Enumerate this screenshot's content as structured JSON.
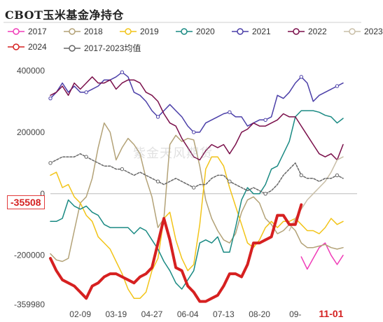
{
  "title": "CBOT玉米基金净持仓",
  "watermark": "紫金天风期货",
  "current_value_label": "-35508",
  "colors": {
    "2017": "#f03cb8",
    "2018": "#b3a277",
    "2019": "#f2c418",
    "2020": "#1a8a83",
    "2021": "#4b3fa8",
    "2022": "#7a0f4a",
    "2023": "#c9bfa8",
    "2024": "#d62020",
    "avg": "#666666"
  },
  "chart_data": {
    "type": "line",
    "title": "CBOT玉米基金净持仓",
    "y_tick_labels": [
      "400000",
      "200000",
      "0",
      "-200000",
      "-359980"
    ],
    "x_tick_labels": [
      "02-09",
      "03-19",
      "04-27",
      "06-04",
      "07-13",
      "08-20",
      "09-",
      "11-01"
    ],
    "ylim": [
      -359980,
      400000
    ],
    "x_points": 50,
    "series": [
      {
        "name": "2017",
        "key": "2017",
        "width": 1.5,
        "dash": "",
        "marker": false,
        "values": [
          null,
          null,
          null,
          null,
          null,
          null,
          null,
          null,
          null,
          null,
          null,
          null,
          null,
          null,
          null,
          null,
          null,
          null,
          null,
          null,
          null,
          null,
          null,
          null,
          null,
          null,
          null,
          null,
          null,
          null,
          null,
          null,
          null,
          null,
          null,
          null,
          null,
          null,
          null,
          null,
          null,
          null,
          -205000,
          -245000,
          -210000,
          -175000,
          -160000,
          -200000,
          -230000,
          -200000
        ]
      },
      {
        "name": "2018",
        "key": "2018",
        "width": 1.5,
        "dash": "",
        "marker": false,
        "values": [
          -195000,
          -215000,
          -220000,
          -210000,
          -120000,
          -30000,
          -10000,
          50000,
          150000,
          230000,
          200000,
          110000,
          150000,
          180000,
          160000,
          130000,
          50000,
          -10000,
          -110000,
          -80000,
          160000,
          190000,
          170000,
          180000,
          175000,
          90000,
          -20000,
          -80000,
          -120000,
          -150000,
          -160000,
          -130000,
          -60000,
          -20000,
          -10000,
          -30000,
          -80000,
          -100000,
          -130000,
          -120000,
          -100000,
          -120000,
          -160000,
          -175000,
          -175000,
          -170000,
          -165000,
          -175000,
          -180000,
          -175000
        ]
      },
      {
        "name": "2019",
        "key": "2019",
        "width": 1.5,
        "dash": "",
        "marker": false,
        "values": [
          60000,
          70000,
          20000,
          30000,
          -10000,
          -30000,
          -70000,
          -90000,
          -140000,
          -160000,
          -180000,
          -220000,
          -260000,
          -310000,
          -340000,
          -340000,
          -320000,
          -250000,
          -210000,
          -80000,
          -60000,
          -150000,
          -210000,
          -250000,
          -230000,
          -100000,
          80000,
          120000,
          120000,
          90000,
          20000,
          -40000,
          -100000,
          -160000,
          -175000,
          -150000,
          -110000,
          -90000,
          -110000,
          -90000,
          -90000,
          -80000,
          -100000,
          -120000,
          -120000,
          -130000,
          -110000,
          -80000,
          -100000,
          -90000
        ]
      },
      {
        "name": "2020",
        "key": "2020",
        "width": 1.5,
        "dash": "",
        "marker": false,
        "values": [
          -90000,
          -90000,
          -80000,
          -20000,
          -40000,
          -50000,
          -40000,
          -60000,
          -70000,
          -100000,
          -110000,
          -110000,
          -110000,
          -110000,
          -130000,
          -110000,
          -120000,
          -150000,
          -180000,
          -220000,
          -250000,
          -290000,
          -310000,
          -280000,
          -250000,
          -160000,
          -150000,
          -160000,
          -140000,
          -190000,
          -190000,
          -110000,
          -20000,
          20000,
          0,
          0,
          30000,
          80000,
          90000,
          130000,
          170000,
          250000,
          270000,
          270000,
          270000,
          265000,
          255000,
          250000,
          230000,
          245000
        ]
      },
      {
        "name": "2021",
        "key": "2021",
        "width": 1.5,
        "dash": "",
        "marker": true,
        "values": [
          310000,
          330000,
          360000,
          330000,
          350000,
          330000,
          330000,
          340000,
          350000,
          370000,
          370000,
          380000,
          395000,
          380000,
          330000,
          320000,
          300000,
          270000,
          250000,
          270000,
          290000,
          270000,
          250000,
          220000,
          200000,
          200000,
          230000,
          240000,
          250000,
          260000,
          265000,
          250000,
          250000,
          220000,
          230000,
          240000,
          240000,
          250000,
          320000,
          310000,
          330000,
          360000,
          380000,
          360000,
          300000,
          320000,
          330000,
          340000,
          350000,
          360000
        ]
      },
      {
        "name": "2022",
        "key": "2022",
        "width": 1.5,
        "dash": "",
        "marker": false,
        "values": [
          320000,
          330000,
          350000,
          320000,
          360000,
          340000,
          360000,
          380000,
          360000,
          360000,
          370000,
          340000,
          360000,
          370000,
          370000,
          360000,
          330000,
          320000,
          300000,
          260000,
          230000,
          220000,
          180000,
          150000,
          120000,
          110000,
          140000,
          160000,
          150000,
          160000,
          130000,
          160000,
          200000,
          210000,
          230000,
          220000,
          220000,
          230000,
          240000,
          260000,
          250000,
          250000,
          220000,
          190000,
          160000,
          130000,
          120000,
          130000,
          110000,
          160000
        ]
      },
      {
        "name": "2023",
        "key": "2023",
        "width": 1.5,
        "dash": "",
        "marker": false,
        "values": [
          null,
          null,
          null,
          null,
          null,
          null,
          null,
          null,
          null,
          null,
          null,
          null,
          null,
          null,
          null,
          null,
          null,
          null,
          null,
          null,
          null,
          null,
          null,
          null,
          null,
          null,
          null,
          null,
          null,
          null,
          null,
          null,
          null,
          null,
          null,
          null,
          null,
          null,
          null,
          null,
          -120000,
          -80000,
          -50000,
          -20000,
          0,
          20000,
          40000,
          70000,
          110000,
          120000
        ]
      },
      {
        "name": "2024",
        "key": "2024",
        "width": 4,
        "dash": "",
        "marker": false,
        "values": [
          -210000,
          -250000,
          -280000,
          -290000,
          -300000,
          -320000,
          -340000,
          -300000,
          -290000,
          -270000,
          -260000,
          -260000,
          -270000,
          -280000,
          -290000,
          -270000,
          -260000,
          -240000,
          -160000,
          -80000,
          -150000,
          -240000,
          -250000,
          -300000,
          -320000,
          -350000,
          -350000,
          -340000,
          -330000,
          -300000,
          -260000,
          -260000,
          -270000,
          -230000,
          -160000,
          -160000,
          -150000,
          -140000,
          -70000,
          -70000,
          -100000,
          -100000,
          -35508,
          null,
          null,
          null,
          null,
          null,
          null,
          null
        ]
      },
      {
        "name": "2017-2023均值",
        "key": "avg",
        "width": 1.5,
        "dash": "3,2",
        "marker": true,
        "values": [
          100000,
          110000,
          120000,
          120000,
          120000,
          130000,
          120000,
          110000,
          100000,
          90000,
          90000,
          80000,
          80000,
          70000,
          60000,
          70000,
          60000,
          50000,
          40000,
          30000,
          40000,
          50000,
          40000,
          30000,
          20000,
          30000,
          30000,
          50000,
          60000,
          60000,
          40000,
          30000,
          20000,
          10000,
          20000,
          10000,
          0,
          10000,
          30000,
          60000,
          80000,
          100000,
          60000,
          50000,
          50000,
          40000,
          50000,
          50000,
          60000,
          50000
        ]
      }
    ]
  }
}
